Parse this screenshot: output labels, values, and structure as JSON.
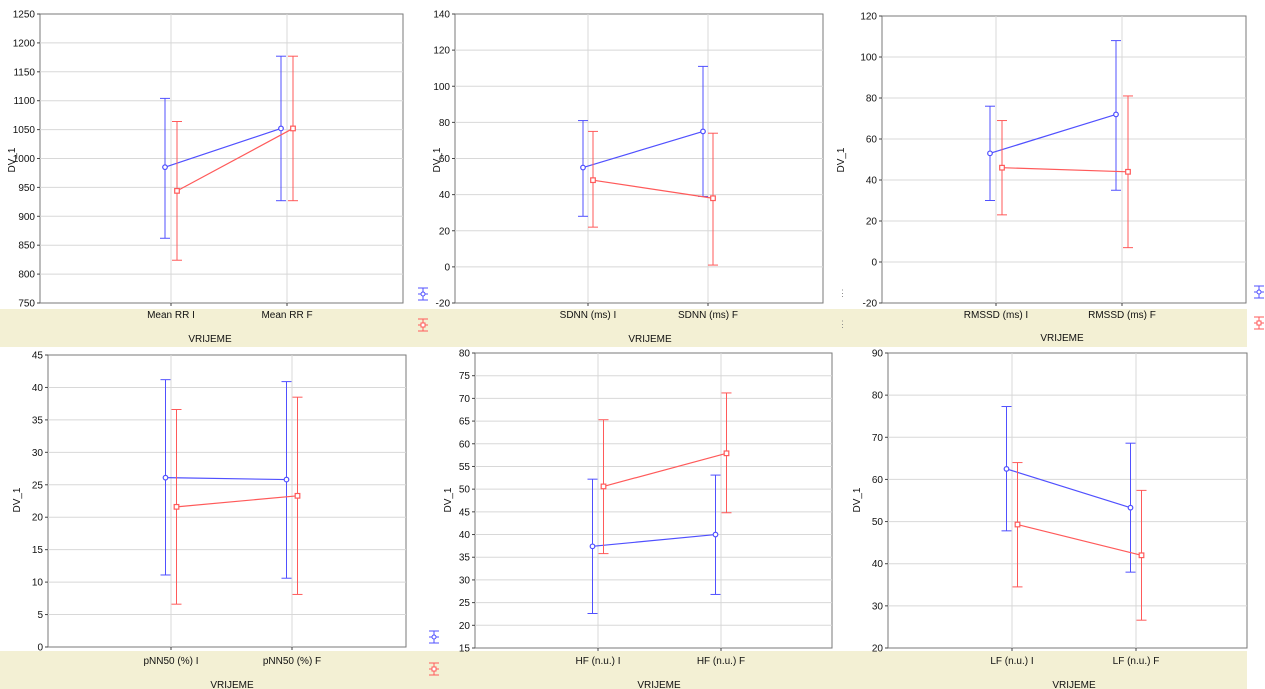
{
  "colors": {
    "series1": "#5050ff",
    "series2": "#ff5a5a",
    "grid": "#d8d8d8",
    "axis": "#000000",
    "frame": "#7a7a7a"
  },
  "chart_data": [
    {
      "type": "line",
      "panel": "top-left",
      "ylabel": "DV_1",
      "xlabel": "VRIJEME",
      "categories": [
        "Mean RR I",
        "Mean RR F"
      ],
      "ylim": [
        750,
        1250
      ],
      "yticks": [
        "750",
        "800",
        "850",
        "900",
        "950",
        "1000",
        "1050",
        "1100",
        "1150",
        "1200",
        "1250"
      ],
      "grid": true,
      "series": [
        {
          "color": "#5050ff",
          "values": [
            985,
            1052
          ],
          "lower": [
            862,
            927
          ],
          "upper": [
            1104,
            1177
          ]
        },
        {
          "color": "#ff5a5a",
          "values": [
            944,
            1052
          ],
          "lower": [
            824,
            927
          ],
          "upper": [
            1064,
            1177
          ]
        }
      ]
    },
    {
      "type": "line",
      "panel": "top-middle",
      "ylabel": "DV_1",
      "xlabel": "VRIJEME",
      "categories": [
        "SDNN  (ms) I",
        "SDNN  (ms) F"
      ],
      "ylim": [
        -20,
        140
      ],
      "yticks": [
        "-20",
        "0",
        "20",
        "40",
        "60",
        "80",
        "100",
        "120",
        "140"
      ],
      "grid": true,
      "series": [
        {
          "color": "#5050ff",
          "values": [
            55,
            75
          ],
          "lower": [
            28,
            39
          ],
          "upper": [
            81,
            111
          ]
        },
        {
          "color": "#ff5a5a",
          "values": [
            48,
            38
          ],
          "lower": [
            22,
            1
          ],
          "upper": [
            75,
            74
          ]
        }
      ]
    },
    {
      "type": "line",
      "panel": "top-right",
      "ylabel": "DV_1",
      "xlabel": "VRIJEME",
      "categories": [
        "RMSSD (ms) I",
        "RMSSD (ms) F"
      ],
      "ylim": [
        -20,
        120
      ],
      "yticks": [
        "-20",
        "0",
        "20",
        "40",
        "60",
        "80",
        "100",
        "120"
      ],
      "grid": true,
      "series": [
        {
          "color": "#5050ff",
          "values": [
            53,
            72
          ],
          "lower": [
            30,
            35
          ],
          "upper": [
            76,
            108
          ]
        },
        {
          "color": "#ff5a5a",
          "values": [
            46,
            44
          ],
          "lower": [
            23,
            7
          ],
          "upper": [
            69,
            81
          ]
        }
      ]
    },
    {
      "type": "line",
      "panel": "bottom-left",
      "ylabel": "DV_1",
      "xlabel": "VRIJEME",
      "categories": [
        "pNN50 (%) I",
        "pNN50 (%) F"
      ],
      "ylim": [
        0,
        45
      ],
      "yticks": [
        "0",
        "5",
        "10",
        "15",
        "20",
        "25",
        "30",
        "35",
        "40",
        "45"
      ],
      "grid": true,
      "series": [
        {
          "color": "#5050ff",
          "values": [
            26.1,
            25.8
          ],
          "lower": [
            11.1,
            10.6
          ],
          "upper": [
            41.2,
            40.9
          ]
        },
        {
          "color": "#ff5a5a",
          "values": [
            21.6,
            23.3
          ],
          "lower": [
            6.6,
            8.1
          ],
          "upper": [
            36.6,
            38.5
          ]
        }
      ]
    },
    {
      "type": "line",
      "panel": "bottom-middle",
      "ylabel": "DV_1",
      "xlabel": "VRIJEME",
      "categories": [
        "HF (n.u.) I",
        "HF (n.u.) F"
      ],
      "ylim": [
        15,
        80
      ],
      "yticks": [
        "15",
        "20",
        "25",
        "30",
        "35",
        "40",
        "45",
        "50",
        "55",
        "60",
        "65",
        "70",
        "75",
        "80"
      ],
      "grid": true,
      "series": [
        {
          "color": "#5050ff",
          "values": [
            37.4,
            40
          ],
          "lower": [
            22.6,
            26.8
          ],
          "upper": [
            52.2,
            53.1
          ]
        },
        {
          "color": "#ff5a5a",
          "values": [
            50.6,
            57.9
          ],
          "lower": [
            35.8,
            44.8
          ],
          "upper": [
            65.3,
            71.2
          ]
        }
      ]
    },
    {
      "type": "line",
      "panel": "bottom-right",
      "ylabel": "DV_1",
      "xlabel": "VRIJEME",
      "categories": [
        "LF (n.u.) I",
        "LF (n.u.) F"
      ],
      "ylim": [
        20,
        90
      ],
      "yticks": [
        "20",
        "30",
        "40",
        "50",
        "60",
        "70",
        "80",
        "90"
      ],
      "grid": true,
      "series": [
        {
          "color": "#5050ff",
          "values": [
            62.5,
            53.3
          ],
          "lower": [
            47.8,
            38
          ],
          "upper": [
            77.3,
            68.6
          ]
        },
        {
          "color": "#ff5a5a",
          "values": [
            49.3,
            42
          ],
          "lower": [
            34.5,
            26.6
          ],
          "upper": [
            64,
            57.4
          ]
        }
      ]
    }
  ]
}
